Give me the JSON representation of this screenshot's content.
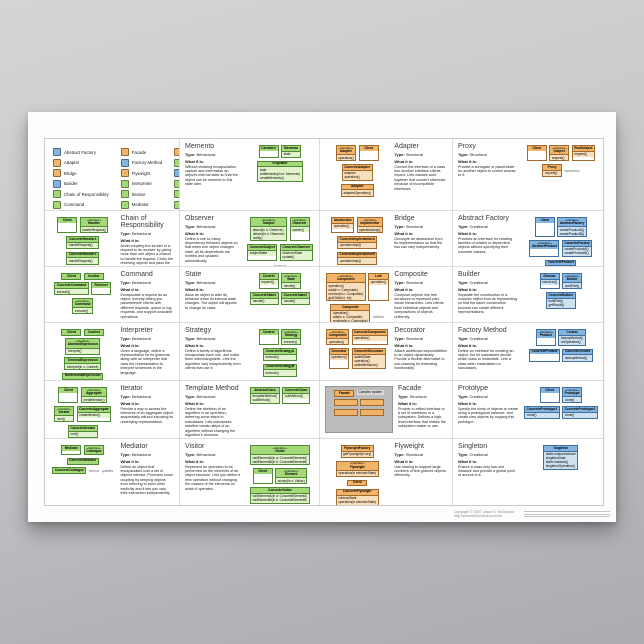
{
  "labels": {
    "type_prefix": "Type:",
    "what_prefix": "What it is:"
  },
  "colors": {
    "behavioral": "#a3d977",
    "structural": "#f2b469",
    "creational": "#82b5e0"
  },
  "footer": {
    "copyright": "Copyright © 2007 Jason S. McDonald",
    "url": "http://www.McDonaldLand.info"
  },
  "legend": {
    "columns": [
      [
        {
          "label": "Abstract Factory",
          "type": "Creational"
        },
        {
          "label": "Adapter",
          "type": "Structural"
        },
        {
          "label": "Bridge",
          "type": "Structural"
        },
        {
          "label": "Builder",
          "type": "Creational"
        },
        {
          "label": "Chain of Responsibility",
          "type": "Behavioral"
        },
        {
          "label": "Command",
          "type": "Behavioral"
        },
        {
          "label": "Composite",
          "type": "Structural"
        },
        {
          "label": "Decorator",
          "type": "Structural"
        }
      ],
      [
        {
          "label": "Facade",
          "type": "Structural"
        },
        {
          "label": "Factory Method",
          "type": "Creational"
        },
        {
          "label": "Flyweight",
          "type": "Structural"
        },
        {
          "label": "Interpreter",
          "type": "Behavioral"
        },
        {
          "label": "Iterator",
          "type": "Behavioral"
        },
        {
          "label": "Mediator",
          "type": "Behavioral"
        },
        {
          "label": "Memento",
          "type": "Behavioral"
        },
        {
          "label": "Prototype",
          "type": "Creational"
        }
      ],
      [
        {
          "label": "Proxy",
          "type": "Structural"
        },
        {
          "label": "Observer",
          "type": "Behavioral"
        },
        {
          "label": "Singleton",
          "type": "Creational"
        },
        {
          "label": "State",
          "type": "Behavioral"
        },
        {
          "label": "Strategy",
          "type": "Behavioral"
        },
        {
          "label": "Template Method",
          "type": "Behavioral"
        },
        {
          "label": "Visitor",
          "type": "Behavioral"
        }
      ]
    ]
  },
  "patterns": [
    {
      "name": "Memento",
      "type": "Behavioral",
      "description": "Without violating encapsulation, capture and externalize an object's internal state so that the object can be restored to this state later.",
      "classes": [
        {
          "name": "Caretaker"
        },
        {
          "name": "Memento",
          "members": [
            "state"
          ]
        },
        {
          "name": "Originator",
          "members": [
            "state",
            "setMemento(in m: Memento)",
            "createMemento()"
          ]
        }
      ]
    },
    {
      "name": "Adapter",
      "type": "Structural",
      "description": "Convert the interface of a class into another interface clients expect. Lets classes work together that couldn't otherwise because of incompatible interfaces.",
      "classes": [
        {
          "stereotype": "«interface»",
          "name": "Adapter",
          "members": [
            "operation()"
          ]
        },
        {
          "name": "Client"
        },
        {
          "name": "ConcreteAdapter",
          "members": [
            "adaptee",
            "operation()"
          ]
        },
        {
          "name": "Adaptee",
          "members": [
            "adaptedOperation()"
          ]
        }
      ]
    },
    {
      "name": "Proxy",
      "type": "Structural",
      "description": "Provide a surrogate or placeholder for another object to control access to it.",
      "notes": [
        "represents"
      ],
      "classes": [
        {
          "name": "Client"
        },
        {
          "stereotype": "«interface»",
          "name": "Subject",
          "members": [
            "request()"
          ]
        },
        {
          "name": "RealSubject",
          "members": [
            "request()"
          ]
        },
        {
          "name": "Proxy",
          "members": [
            "request()"
          ]
        }
      ]
    },
    {
      "name": "Chain of Responsibility",
      "type": "Behavioral",
      "description": "Avoid coupling the sender of a request to its receiver by giving more than one object a chance to handle the request. Chain the receiving objects and pass the request along the chain until an object handles it.",
      "classes": [
        {
          "name": "Client"
        },
        {
          "stereotype": "«interface»",
          "name": "Handler",
          "members": [
            "handleRequest()"
          ]
        },
        {
          "name": "ConcreteHandler1",
          "members": [
            "handleRequest()"
          ]
        },
        {
          "name": "ConcreteHandler2",
          "members": [
            "handleRequest()"
          ]
        }
      ]
    },
    {
      "name": "Observer",
      "type": "Behavioral",
      "description": "Define a one-to-many dependency between objects so that when one object changes state, all its dependents are notified and updated automatically.",
      "notes": [
        "observes"
      ],
      "classes": [
        {
          "stereotype": "«interface»",
          "name": "Subject",
          "members": [
            "attach(in o: Observer)",
            "detach(in o: Observer)",
            "notify()"
          ]
        },
        {
          "stereotype": "«interface»",
          "name": "Observer",
          "members": [
            "update()"
          ]
        },
        {
          "name": "ConcreteSubject",
          "members": [
            "subjectState"
          ]
        },
        {
          "name": "ConcreteObserver",
          "members": [
            "observerState",
            "update()"
          ]
        }
      ]
    },
    {
      "name": "Bridge",
      "type": "Structural",
      "description": "Decouple an abstraction from its implementation so that the two can vary independently.",
      "classes": [
        {
          "name": "Abstraction",
          "members": [
            "operation()"
          ]
        },
        {
          "stereotype": "«interface»",
          "name": "Implementor",
          "members": [
            "operationImpl()"
          ]
        },
        {
          "name": "ConcreteImplementorA",
          "members": [
            "operationImpl()"
          ]
        },
        {
          "name": "ConcreteImplementorB",
          "members": [
            "operationImpl()"
          ]
        }
      ]
    },
    {
      "name": "Abstract Factory",
      "type": "Creational",
      "description": "Provides an interface for creating families of related or dependent objects without specifying their concrete classes.",
      "classes": [
        {
          "name": "Client"
        },
        {
          "stereotype": "«interface»",
          "name": "AbstractFactory",
          "members": [
            "createProductA()",
            "createProductB()"
          ]
        },
        {
          "stereotype": "«interface»",
          "name": "AbstractProduct"
        },
        {
          "name": "ConcreteFactory",
          "members": [
            "createProductA()",
            "createProductB()"
          ]
        },
        {
          "name": "ConcreteProduct"
        }
      ]
    },
    {
      "name": "Command",
      "type": "Behavioral",
      "description": "Encapsulate a request as an object, thereby letting you parameterize clients with different requests, queue or log requests, and support undoable operations.",
      "classes": [
        {
          "name": "Client"
        },
        {
          "name": "Invoker"
        },
        {
          "name": "ConcreteCommand",
          "members": [
            "execute()"
          ]
        },
        {
          "name": "Receiver"
        },
        {
          "stereotype": "«interface»",
          "name": "Command",
          "members": [
            "execute()"
          ]
        }
      ]
    },
    {
      "name": "State",
      "type": "Behavioral",
      "description": "Allow an object to alter its behavior when its internal state changes. The object will appear to change its class.",
      "classes": [
        {
          "name": "Context",
          "members": [
            "request()"
          ]
        },
        {
          "stereotype": "«interface»",
          "name": "State",
          "members": [
            "handle()"
          ]
        },
        {
          "name": "ConcreteState1",
          "members": [
            "handle()"
          ]
        },
        {
          "name": "ConcreteState2",
          "members": [
            "handle()"
          ]
        }
      ]
    },
    {
      "name": "Composite",
      "type": "Structural",
      "description": "Compose objects into tree structures to represent part-whole hierarchies. Lets clients treat individual objects and compositions of objects uniformly.",
      "notes": [
        "children"
      ],
      "classes": [
        {
          "stereotype": "«interface»",
          "name": "Component",
          "members": [
            "operation()",
            "add(in c: Composite)",
            "remove(in c: Composite)",
            "getChild(in i: int)"
          ]
        },
        {
          "name": "Leaf",
          "members": [
            "operation()"
          ]
        },
        {
          "name": "Composite",
          "members": [
            "operation()",
            "add(in c: Composite)",
            "remove(in c: Composite)",
            "getChild(in i: int)"
          ]
        }
      ]
    },
    {
      "name": "Builder",
      "type": "Creational",
      "description": "Separate the construction of a complex object from its representing so that the same construction process can create different representations.",
      "classes": [
        {
          "name": "Director",
          "members": [
            "construct()"
          ]
        },
        {
          "stereotype": "«interface»",
          "name": "Builder",
          "members": [
            "buildPart()"
          ]
        },
        {
          "name": "ConcreteBuilder",
          "members": [
            "buildPart()",
            "getResult()"
          ]
        }
      ]
    },
    {
      "name": "Interpreter",
      "type": "Behavioral",
      "description": "Given a language, define a representation for its grammar along with an interpreter that uses the representation to interpret sentences in the language.",
      "classes": [
        {
          "name": "Client"
        },
        {
          "name": "Context"
        },
        {
          "stereotype": "«interface»",
          "name": "AbstractExpression",
          "members": [
            "interpret()"
          ]
        },
        {
          "name": "TerminalExpression",
          "members": [
            "interpret(in c: Context)"
          ]
        },
        {
          "name": "NonterminalExpression",
          "members": [
            "interpret(in c: Context)"
          ]
        }
      ]
    },
    {
      "name": "Strategy",
      "type": "Behavioral",
      "description": "Define a family of algorithms, encapsulate each one, and make them interchangeable. Lets the algorithm vary independently from clients that use it.",
      "classes": [
        {
          "name": "Context"
        },
        {
          "stereotype": "«interface»",
          "name": "Strategy",
          "members": [
            "execute()"
          ]
        },
        {
          "name": "ConcreteStrategyA",
          "members": [
            "execute()"
          ]
        },
        {
          "name": "ConcreteStrategyB",
          "members": [
            "execute()"
          ]
        }
      ]
    },
    {
      "name": "Decorator",
      "type": "Structural",
      "description": "Attach additional responsibilities to an object dynamically. Provide a flexible alternative to sub-classing for extending functionality.",
      "classes": [
        {
          "stereotype": "«interface»",
          "name": "Component",
          "members": [
            "operation()"
          ]
        },
        {
          "name": "ConcreteComponent",
          "members": [
            "operation()"
          ]
        },
        {
          "name": "Decorator",
          "members": [
            "operation()"
          ]
        },
        {
          "name": "ConcreteDecorator",
          "members": [
            "addedState",
            "operation()",
            "addedBehavior()"
          ]
        }
      ]
    },
    {
      "name": "Factory Method",
      "type": "Creational",
      "description": "Define an interface for creating an object, but let subclasses decide which class to instantiate. Lets a class defer instantiation to subclasses.",
      "classes": [
        {
          "stereotype": "«interface»",
          "name": "Product"
        },
        {
          "name": "Creator",
          "members": [
            "factoryMethod()",
            "anOperation()"
          ]
        },
        {
          "name": "ConcreteProduct"
        },
        {
          "name": "ConcreteCreator",
          "members": [
            "factoryMethod()"
          ]
        }
      ]
    },
    {
      "name": "Iterator",
      "type": "Behavioral",
      "description": "Provide a way to access the elements of an aggregate object sequentially without exposing its underlying representation.",
      "classes": [
        {
          "name": "Client"
        },
        {
          "stereotype": "«interface»",
          "name": "Aggregate",
          "members": [
            "createIterator()"
          ]
        },
        {
          "stereotype": "«interface»",
          "name": "Iterator",
          "members": [
            "next()"
          ]
        },
        {
          "name": "ConcreteAggregate",
          "members": [
            "createIterator()"
          ]
        },
        {
          "name": "ConcreteIterator",
          "members": [
            "next()"
          ]
        }
      ]
    },
    {
      "name": "Template Method",
      "type": "Behavioral",
      "description": "Define the skeleton of an algorithm in an operation, deferring some steps to subclasses. Lets subclasses redefine certain steps of an algorithm without changing the algorithm's structure.",
      "classes": [
        {
          "name": "AbstractClass",
          "members": [
            "templateMethod()",
            "subMethod()"
          ]
        },
        {
          "name": "ConcreteClass",
          "members": [
            "subMethod()"
          ]
        }
      ]
    },
    {
      "name": "Facade",
      "type": "Structural",
      "description": "Provide a unified interface to a set of interfaces in a subsystem. Defines a high-level interface that makes the subsystem easier to use.",
      "classes": [
        {
          "name": "Facade"
        },
        {
          "name": "Complex system",
          "plain": true
        },
        {
          "name": ""
        },
        {
          "name": ""
        },
        {
          "name": ""
        },
        {
          "name": ""
        }
      ]
    },
    {
      "name": "Prototype",
      "type": "Creational",
      "description": "Specify the kinds of objects to create using a prototypical instance, and create new objects by copying this prototype.",
      "classes": [
        {
          "name": "Client"
        },
        {
          "stereotype": "«interface»",
          "name": "Prototype",
          "members": [
            "clone()"
          ]
        },
        {
          "name": "ConcretePrototype1",
          "members": [
            "clone()"
          ]
        },
        {
          "name": "ConcretePrototype2",
          "members": [
            "clone()"
          ]
        }
      ]
    },
    {
      "name": "Mediator",
      "type": "Behavioral",
      "description": "Define an object that encapsulates how a set of objects interact. Promotes loose coupling by keeping objects from referring to each other explicitly and it lets you vary their interaction independently.",
      "notes": [
        "informs",
        "updates"
      ],
      "classes": [
        {
          "name": "Mediator"
        },
        {
          "stereotype": "«interface»",
          "name": "Colleague"
        },
        {
          "name": "ConcreteMediator"
        },
        {
          "name": "ConcreteColleague"
        }
      ]
    },
    {
      "name": "Visitor",
      "type": "Behavioral",
      "description": "Represent an operation to be performed on the elements of an object structure. Lets you define a new operation without changing the classes of the elements on which it operates.",
      "classes": [
        {
          "stereotype": "«interface»",
          "name": "Visitor",
          "members": [
            "visitElementA(in a: ConcreteElementA)",
            "visitElementB(in b: ConcreteElementB)"
          ]
        },
        {
          "name": "Client"
        },
        {
          "stereotype": "«interface»",
          "name": "Element",
          "members": [
            "accept(in v: Visitor)"
          ]
        },
        {
          "name": "ConcreteVisitor",
          "members": [
            "visitElementA(in a: ConcreteElementA)",
            "visitElementB(in b: ConcreteElementB)"
          ]
        },
        {
          "name": "ConcreteElementA",
          "members": [
            "accept(in v: Visitor)"
          ]
        },
        {
          "name": "ConcreteElementB",
          "members": [
            "accept(in v: Visitor)"
          ]
        }
      ]
    },
    {
      "name": "Flyweight",
      "type": "Structural",
      "description": "Use sharing to support large numbers of fine-grained objects efficiently.",
      "classes": [
        {
          "name": "FlyweightFactory",
          "members": [
            "getFlyweight(in key)"
          ]
        },
        {
          "stereotype": "«interface»",
          "name": "Flyweight",
          "members": [
            "operation(in extrinsicState)"
          ]
        },
        {
          "name": "Client"
        },
        {
          "name": "ConcreteFlyweight",
          "members": [
            "intrinsicState",
            "operation(in extrinsicState)"
          ]
        },
        {
          "name": "UnsharedConcreteFlyweight",
          "members": [
            "allState",
            "operation(in extrinsicState)"
          ]
        }
      ]
    },
    {
      "name": "Singleton",
      "type": "Creational",
      "description": "Ensure a class only has one instance and provide a global point of access to it.",
      "classes": [
        {
          "name": "Singleton",
          "members": [
            "static uniqueInstance",
            "singletonData",
            "static instance()",
            "singletonOperation()"
          ]
        }
      ]
    }
  ]
}
